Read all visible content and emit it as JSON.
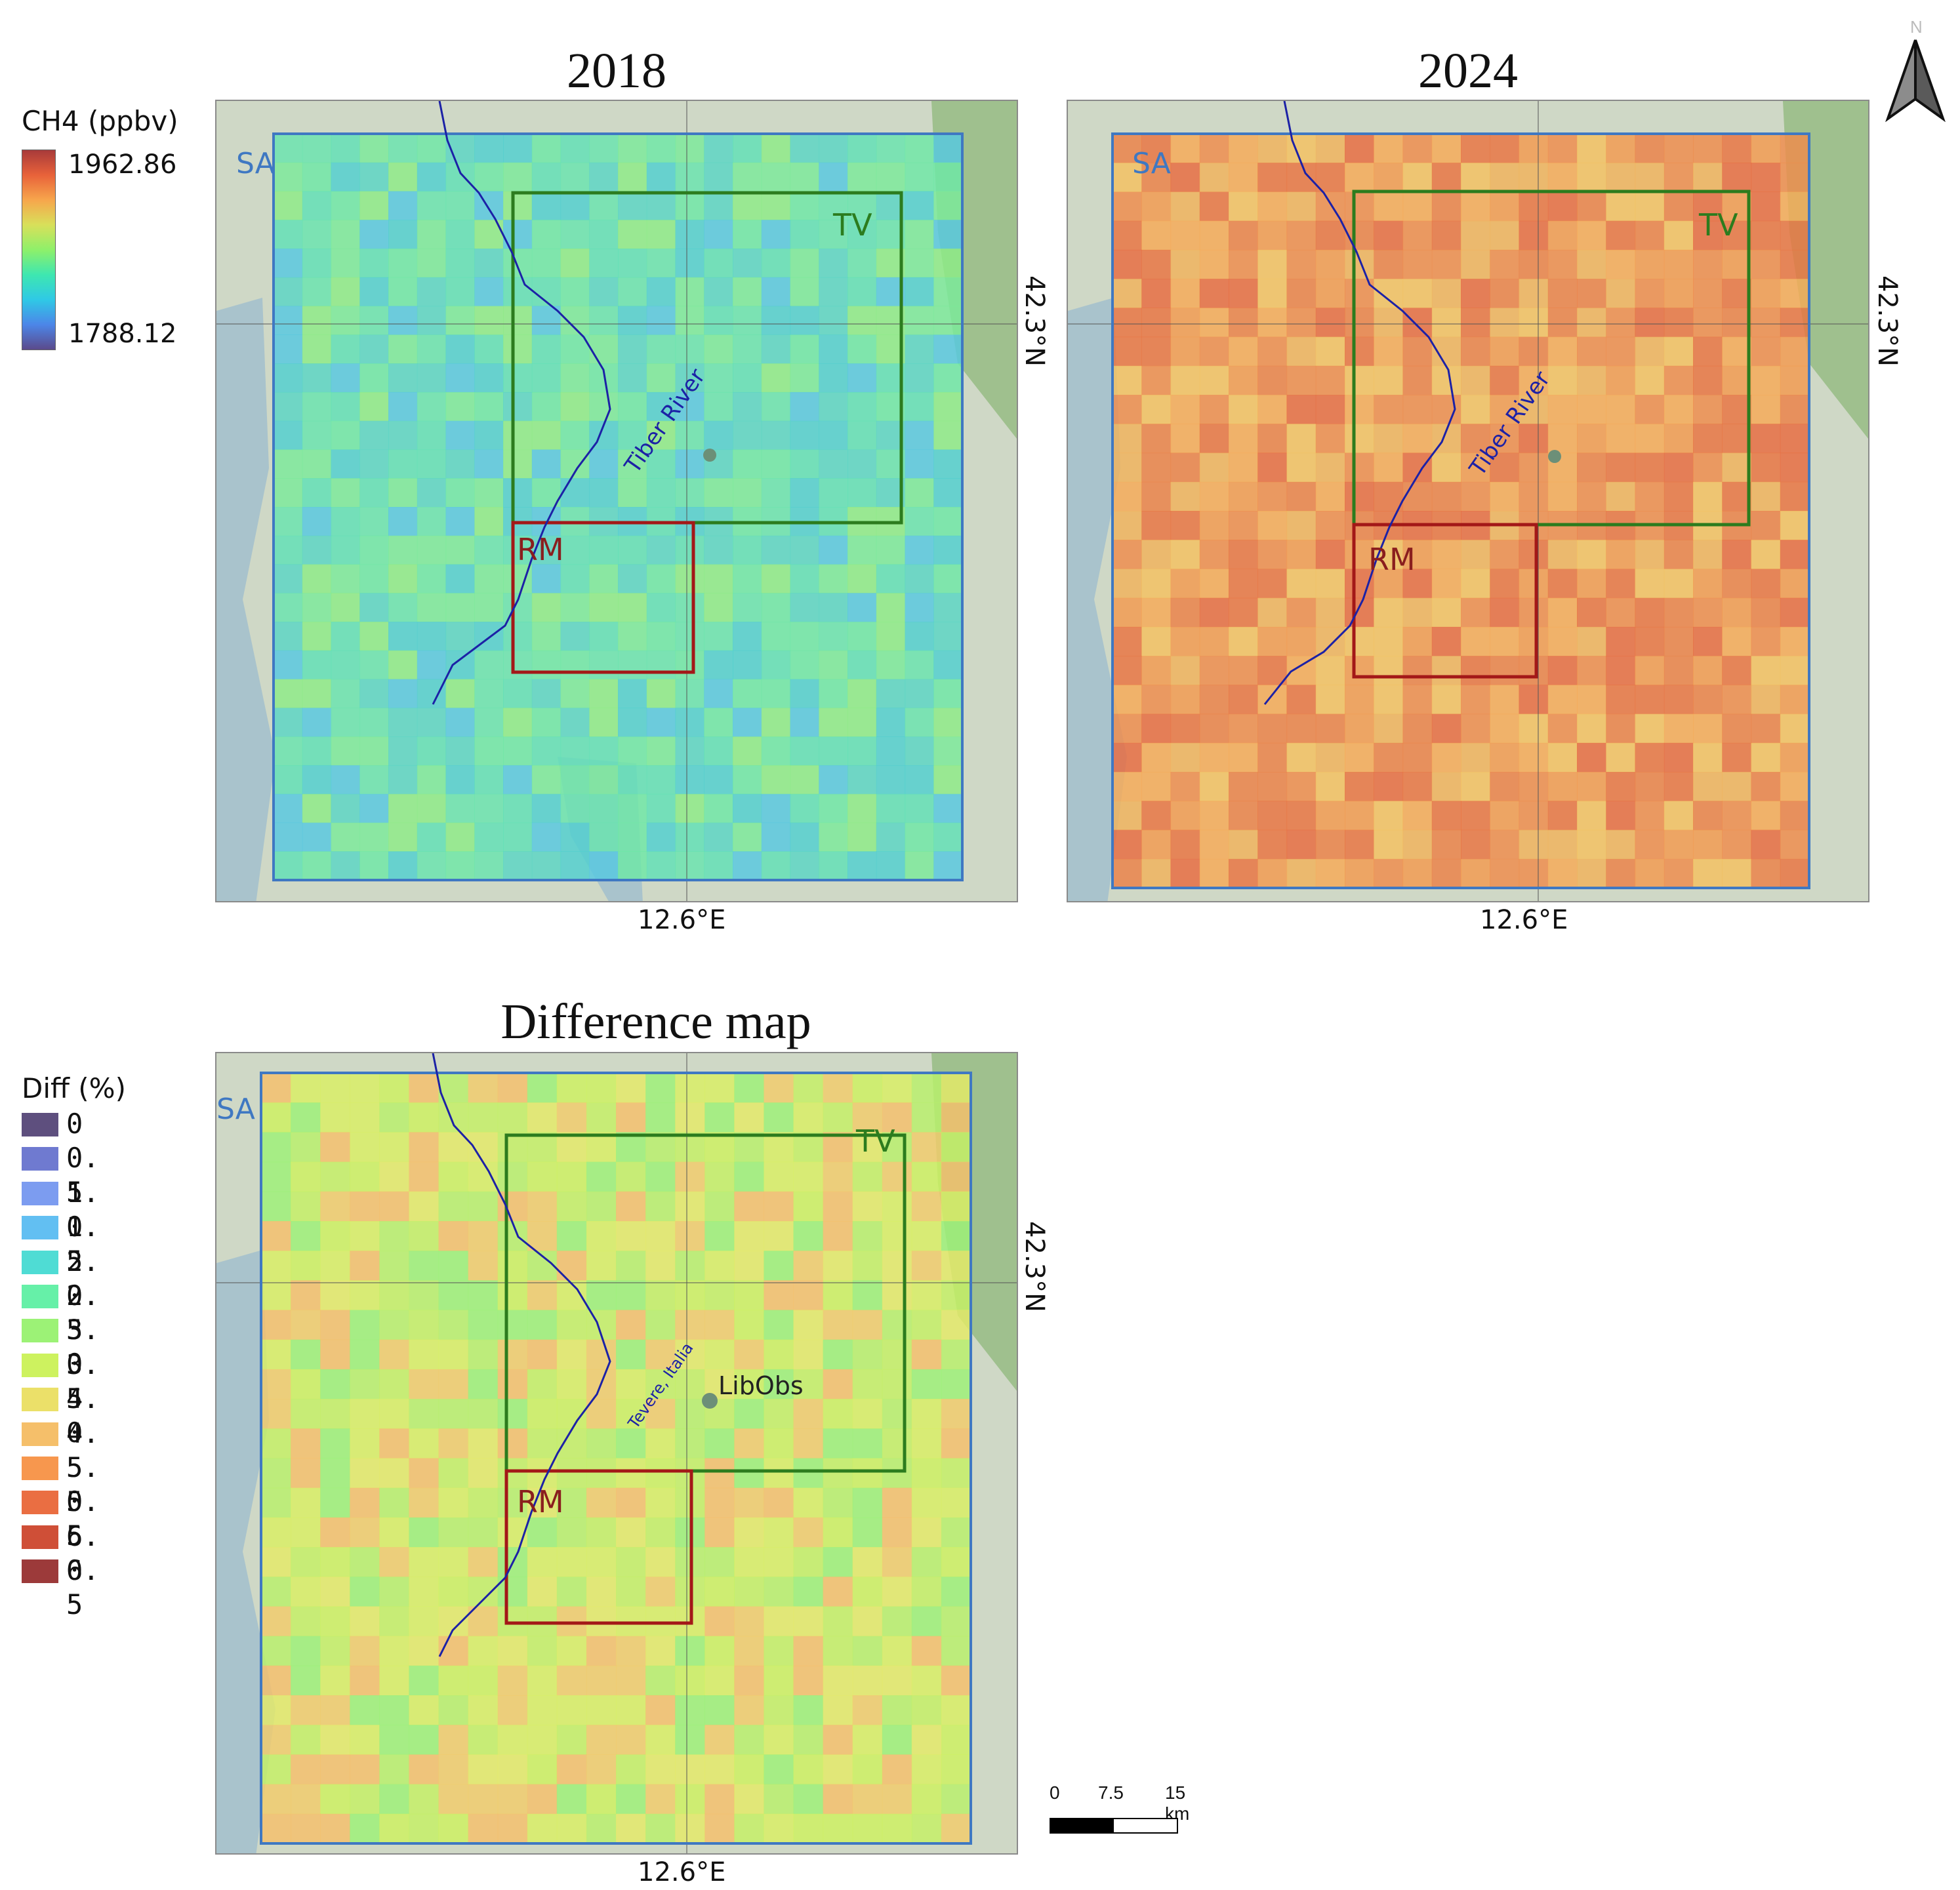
{
  "panels": [
    {
      "title": "2018",
      "x_label": "12.6°E",
      "y_label": "42.3°N",
      "river_label": "Tiber River",
      "region_labels": {
        "sa": "SA",
        "tv": "TV",
        "rm": "RM"
      }
    },
    {
      "title": "2024",
      "x_label": "12.6°E",
      "y_label": "42.3°N",
      "river_label": "Tiber River",
      "region_labels": {
        "sa": "SA",
        "tv": "TV",
        "rm": "RM"
      }
    },
    {
      "title": "Difference map",
      "x_label": "12.6°E",
      "y_label": "42.3°N",
      "river_label": "Tevere, Italia",
      "station_label": "LibObs",
      "region_labels": {
        "sa": "SA",
        "tv": "TV",
        "rm": "RM"
      }
    }
  ],
  "ch4_legend": {
    "title": "CH4 (ppbv)",
    "max_label": "1962.86",
    "min_label": "1788.12"
  },
  "diff_legend": {
    "title": "Diff (%)",
    "items": [
      {
        "label": "0",
        "color": "#5e4f7e"
      },
      {
        "label": "0. 5",
        "color": "#6f7ad0"
      },
      {
        "label": "1. 0",
        "color": "#7c9cf0"
      },
      {
        "label": "1. 5",
        "color": "#62bff2"
      },
      {
        "label": "2. 0",
        "color": "#4fdcd4"
      },
      {
        "label": "2. 5",
        "color": "#66f0a8"
      },
      {
        "label": "3. 0",
        "color": "#9cf276"
      },
      {
        "label": "3. 5",
        "color": "#cdf25f"
      },
      {
        "label": "4. 0",
        "color": "#ebe069"
      },
      {
        "label": "4. 5",
        "color": "#f5bf6a"
      },
      {
        "label": "5. 0",
        "color": "#f7974e"
      },
      {
        "label": "5. 5",
        "color": "#ea6e42"
      },
      {
        "label": "6. 0",
        "color": "#cf4f37"
      },
      {
        "label": "6. 5",
        "color": "#9c3a3a"
      }
    ]
  },
  "scale_bar": {
    "labels": [
      "0",
      "7.5",
      "15 km"
    ]
  },
  "north_arrow": {
    "label": "N"
  },
  "colors": {
    "sa_box": "#3f78c2",
    "tv_box": "#2c7c1e",
    "rm_box": "#a31818",
    "river": "#1c21a6",
    "station": "#6c8f78",
    "ch4_ramp": [
      "#5b4a8b",
      "#4c86e8",
      "#2fc9e6",
      "#3ee7b0",
      "#8ef06a",
      "#d8e05a",
      "#f7a64c",
      "#e8623a",
      "#a83a3a"
    ]
  }
}
